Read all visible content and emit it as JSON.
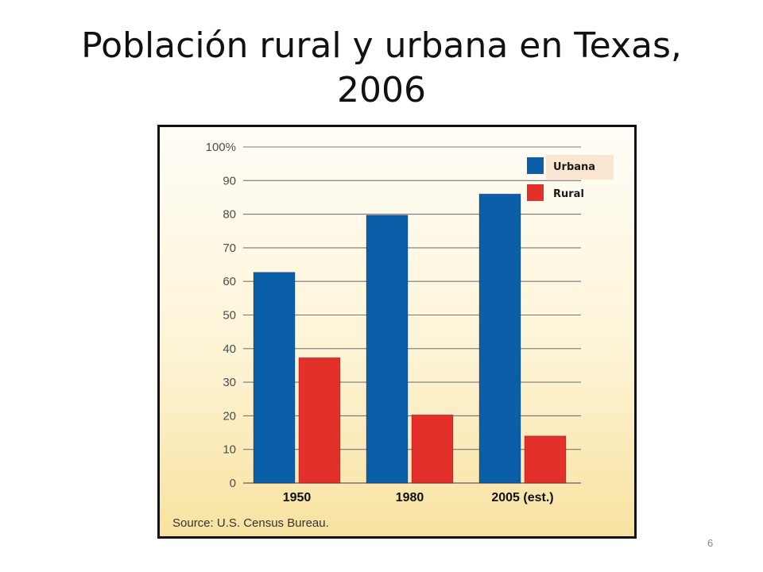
{
  "slide": {
    "title": "Población rural y urbana en Texas, 2006",
    "page_number": "6"
  },
  "colors": {
    "urbana": "#0b5ea8",
    "rural": "#e3302b",
    "grid": "#777777"
  },
  "chart_data": {
    "type": "bar",
    "categories": [
      "1950",
      "1980",
      "2005 (est.)"
    ],
    "series": [
      {
        "name": "Urbana",
        "values": [
          62.7,
          79.7,
          86
        ]
      },
      {
        "name": "Rural",
        "values": [
          37.3,
          20.3,
          14
        ]
      }
    ],
    "ylim": [
      0,
      100
    ],
    "y_ticks": [
      {
        "value": 0,
        "label": "0"
      },
      {
        "value": 10,
        "label": "10"
      },
      {
        "value": 20,
        "label": "20"
      },
      {
        "value": 30,
        "label": "30"
      },
      {
        "value": 40,
        "label": "40"
      },
      {
        "value": 50,
        "label": "50"
      },
      {
        "value": 60,
        "label": "60"
      },
      {
        "value": 70,
        "label": "70"
      },
      {
        "value": 80,
        "label": "80"
      },
      {
        "value": 90,
        "label": "90"
      },
      {
        "value": 100,
        "label": "100%"
      }
    ],
    "grid": true,
    "legend_position": "top-right",
    "source": "Source: U.S. Census Bureau."
  }
}
